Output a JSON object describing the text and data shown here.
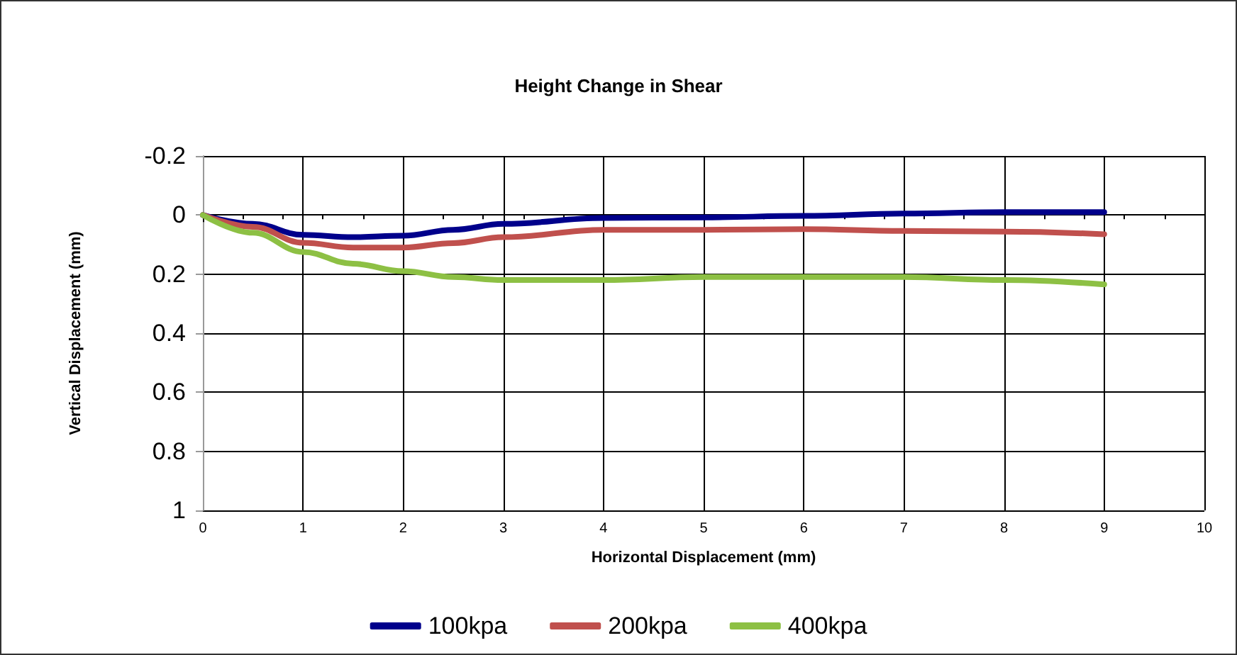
{
  "chart_data": {
    "type": "line",
    "title": "Height Change in Shear",
    "xlabel": "Horizontal Displacement (mm)",
    "ylabel": "Vertical Displacement (mm)",
    "xlim": [
      0,
      10
    ],
    "xticks": [
      0,
      1,
      2,
      3,
      4,
      5,
      6,
      7,
      8,
      9,
      10
    ],
    "ylim": [
      1,
      -0.2
    ],
    "yticks": [
      -0.2,
      0,
      0.2,
      0.4,
      0.6,
      0.8,
      1
    ],
    "grid": true,
    "legend": "bottom",
    "marker": "none",
    "line_style": "solid",
    "series": [
      {
        "name": "100kpa",
        "color": "#00008b",
        "x": [
          0,
          0.5,
          1,
          1.5,
          2,
          2.5,
          3,
          4,
          5,
          6,
          7,
          8,
          9
        ],
        "values": [
          0,
          0.03,
          0.067,
          0.075,
          0.07,
          0.05,
          0.03,
          0.01,
          0.008,
          0.003,
          -0.005,
          -0.01,
          -0.01
        ]
      },
      {
        "name": "200kpa",
        "color": "#c0504d",
        "x": [
          0,
          0.5,
          1,
          1.5,
          2,
          2.5,
          3,
          4,
          5,
          6,
          7,
          8,
          9
        ],
        "values": [
          0,
          0.04,
          0.094,
          0.11,
          0.11,
          0.095,
          0.075,
          0.05,
          0.05,
          0.048,
          0.054,
          0.056,
          0.065
        ]
      },
      {
        "name": "400kpa",
        "color": "#8dc044",
        "x": [
          0,
          0.5,
          1,
          1.5,
          2,
          2.5,
          3,
          4,
          5,
          6,
          7,
          8,
          9
        ],
        "values": [
          0,
          0.06,
          0.125,
          0.165,
          0.19,
          0.21,
          0.22,
          0.22,
          0.21,
          0.21,
          0.21,
          0.22,
          0.235
        ]
      }
    ]
  }
}
